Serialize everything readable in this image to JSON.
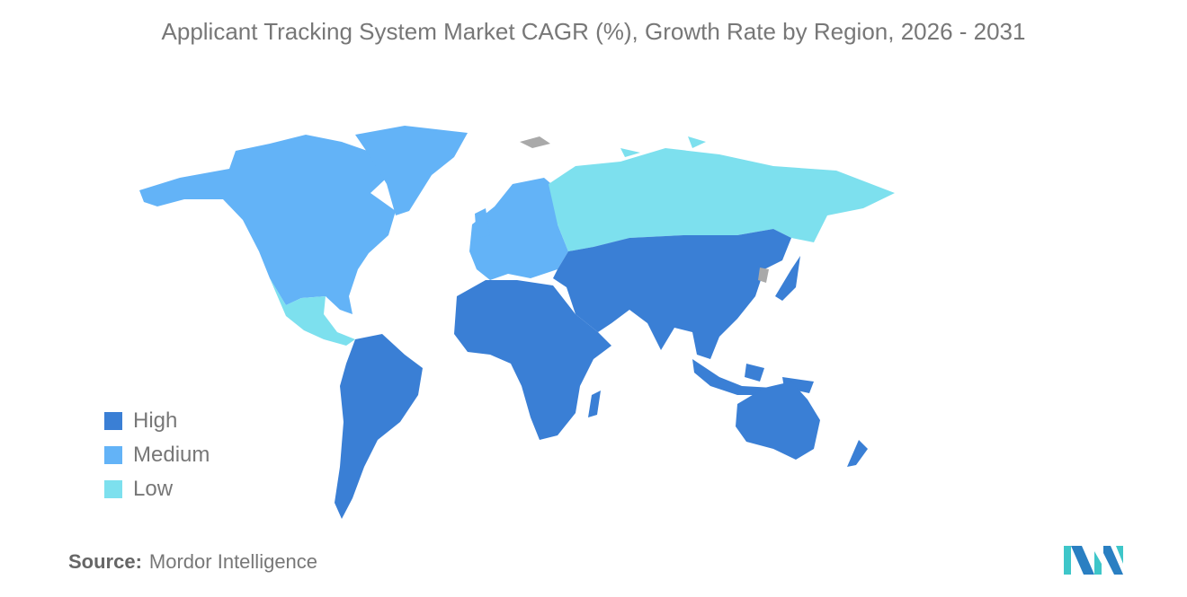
{
  "title": "Applicant Tracking System Market CAGR (%), Growth Rate by Region, 2026 - 2031",
  "legend": [
    {
      "label": "High",
      "color": "#3a7fd5"
    },
    {
      "label": "Medium",
      "color": "#63b3f7"
    },
    {
      "label": "Low",
      "color": "#7de0ee"
    }
  ],
  "no_data_color": "#a9a9a9",
  "source": {
    "label": "Source:",
    "value": "Mordor Intelligence"
  },
  "logo_colors": {
    "teal": "#3ec6c9",
    "blue": "#2a7fc2"
  }
}
